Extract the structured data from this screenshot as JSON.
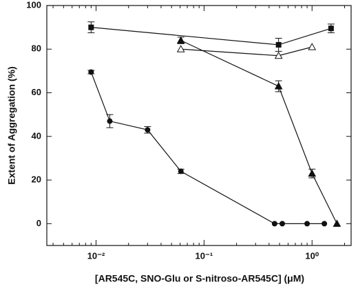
{
  "chart_data": {
    "type": "scatter",
    "xlabel": "[AR545C, SNO-Glu or S-nitroso-AR545C] (μM)",
    "ylabel": "Extent of Aggregation (%)",
    "xscale": "log",
    "xlim": [
      0.0035,
      2.3
    ],
    "ylim": [
      -10,
      100
    ],
    "xticks": [
      {
        "value": 0.01,
        "label": "10⁻²"
      },
      {
        "value": 0.1,
        "label": "10⁻¹"
      },
      {
        "value": 1,
        "label": "10⁰"
      }
    ],
    "xminorticks": [
      0.004,
      0.005,
      0.006,
      0.007,
      0.008,
      0.009,
      0.02,
      0.03,
      0.04,
      0.05,
      0.06,
      0.07,
      0.08,
      0.09,
      0.2,
      0.3,
      0.4,
      0.5,
      0.6,
      0.7,
      0.8,
      0.9,
      2
    ],
    "yticks": [
      0,
      20,
      40,
      60,
      80,
      100
    ],
    "series": [
      {
        "marker": "square",
        "color": "#111111",
        "x": [
          0.009,
          0.49,
          1.5
        ],
        "values": [
          90,
          82,
          89.5
        ],
        "errors": [
          2.5,
          3,
          2
        ]
      },
      {
        "marker": "triangle-open",
        "color": "#111111",
        "x": [
          0.061,
          0.49,
          1.0
        ],
        "values": [
          80,
          77,
          81
        ],
        "errors": [
          null,
          null,
          null
        ]
      },
      {
        "marker": "triangle",
        "color": "#111111",
        "x": [
          0.061,
          0.49,
          1.0,
          1.7
        ],
        "values": [
          84,
          63,
          23,
          0
        ],
        "errors": [
          1.5,
          2.5,
          2,
          null
        ]
      },
      {
        "marker": "circle",
        "color": "#111111",
        "x": [
          0.009,
          0.0134,
          0.03,
          0.061,
          0.45,
          0.53,
          0.9,
          1.3
        ],
        "values": [
          69.5,
          47,
          43,
          24,
          0,
          0,
          0,
          0
        ],
        "errors": [
          0.8,
          3,
          1.5,
          1,
          null,
          null,
          null,
          null
        ]
      }
    ]
  }
}
